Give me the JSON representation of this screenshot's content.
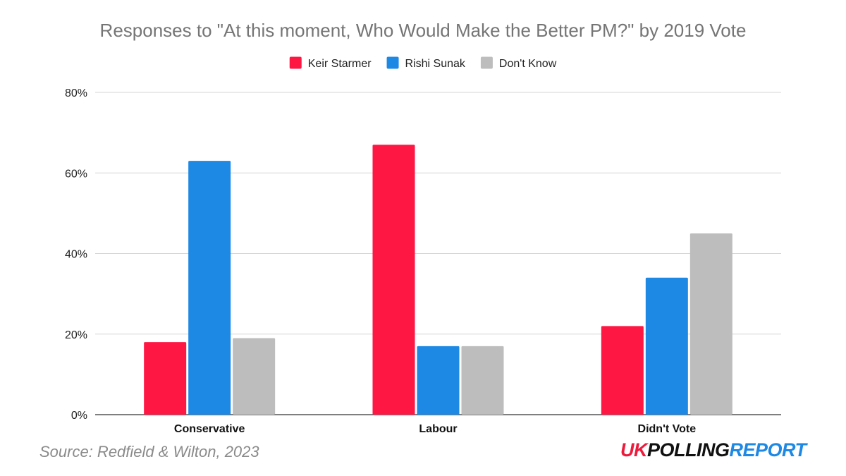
{
  "chart_data": {
    "type": "bar",
    "title": "Responses to \"At this moment, Who Would Make the Better PM?\" by 2019 Vote",
    "categories": [
      "Conservative",
      "Labour",
      "Didn't Vote"
    ],
    "series": [
      {
        "name": "Keir Starmer",
        "color": "#ff1744",
        "values": [
          18,
          67,
          22
        ]
      },
      {
        "name": "Rishi Sunak",
        "color": "#1e88e5",
        "values": [
          63,
          17,
          34
        ]
      },
      {
        "name": "Don't Know",
        "color": "#bdbdbd",
        "values": [
          19,
          17,
          45
        ]
      }
    ],
    "ylim": [
      0,
      80
    ],
    "yticks": [
      0,
      20,
      40,
      60,
      80
    ],
    "ytick_labels": [
      "0%",
      "20%",
      "40%",
      "60%",
      "80%"
    ],
    "grid": true,
    "legend_position": "top-center"
  },
  "footer": {
    "source": "Source: Redfield & Wilton, 2023",
    "logo_uk": "UK",
    "logo_polling": "POLLING",
    "logo_report": "REPORT"
  }
}
